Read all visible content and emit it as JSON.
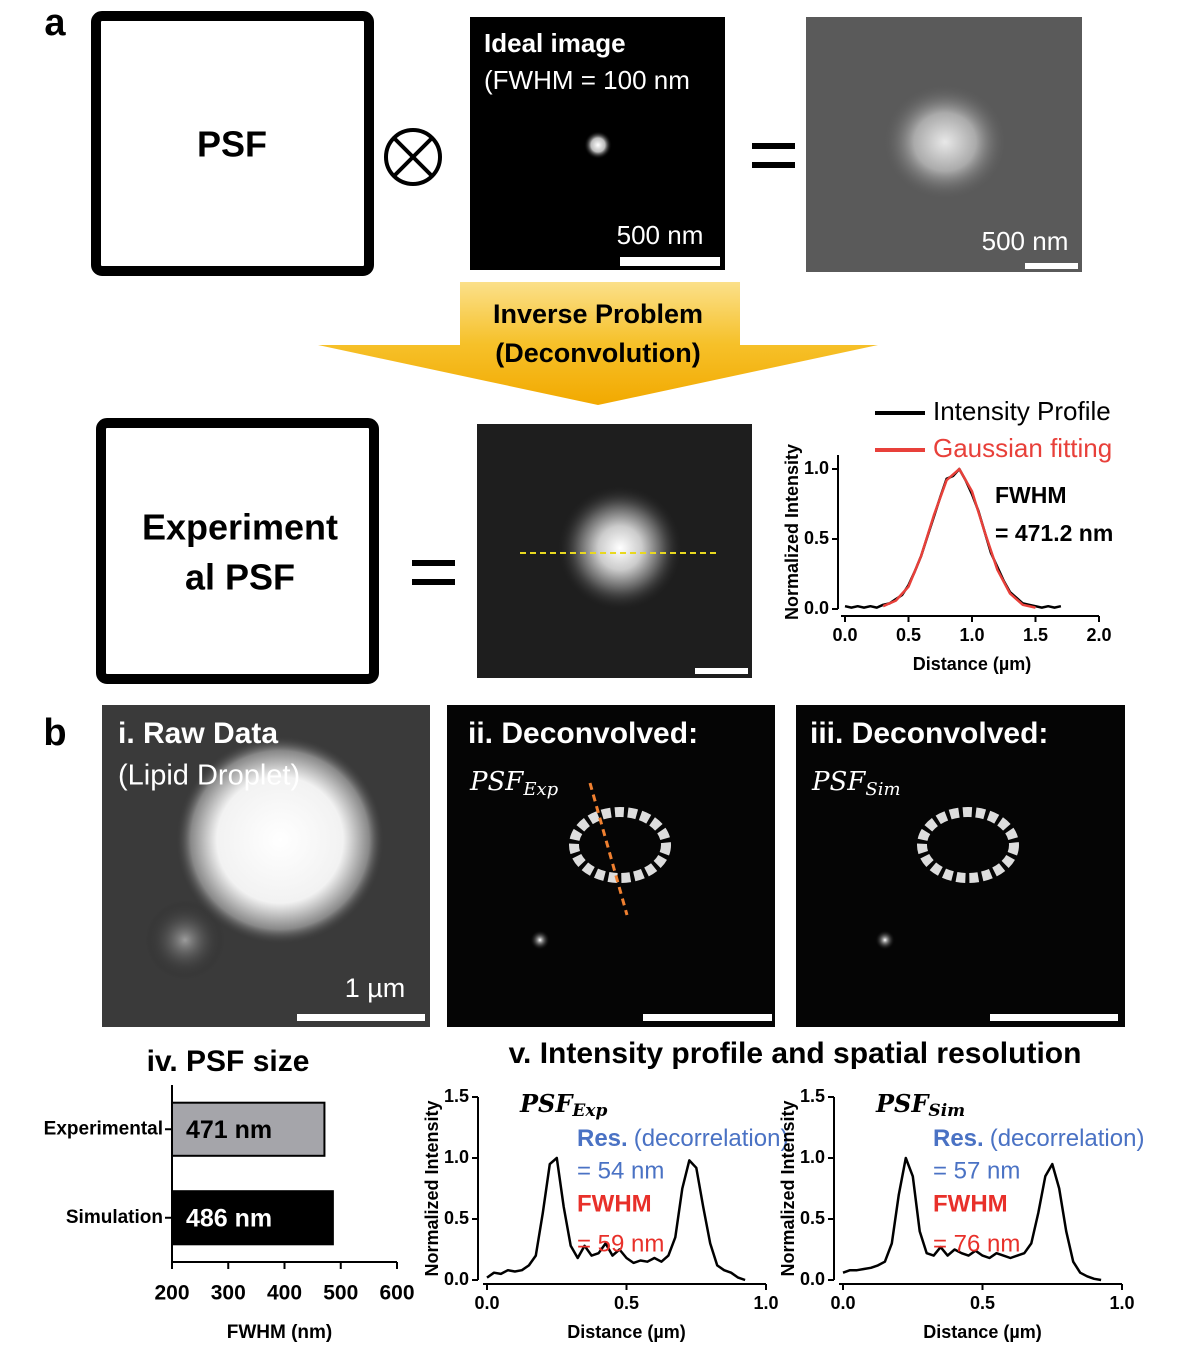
{
  "panel_a": {
    "label": "a",
    "psf_box": "PSF",
    "ideal_title": "Ideal image",
    "ideal_subtitle": "(FWHM = 100 nm",
    "ideal_scale": "500 nm",
    "blur_scale": "500 nm",
    "arrow_line1": "Inverse Problem",
    "arrow_line2": "(Deconvolution)",
    "exp_box_line1": "Experiment",
    "exp_box_line2": "al PSF"
  },
  "panel_b": {
    "label": "b",
    "raw_title": "i. Raw Data",
    "raw_subtitle": "(Lipid Droplet)",
    "raw_scale": "1 µm",
    "dec_exp_title": "ii. Deconvolved:",
    "dec_exp_psf": {
      "main": "PSF",
      "sub": "Exp"
    },
    "dec_sim_title": "iii. Deconvolved:",
    "dec_sim_psf": {
      "main": "PSF",
      "sub": "Sim"
    },
    "profile_title": "v. Intensity profile and spatial resolution"
  },
  "chart_data": [
    {
      "type": "line",
      "x_label": "Distance (µm)",
      "y_label": "Normalized Intensity",
      "xlim": [
        0,
        2
      ],
      "ylim": [
        0,
        1.1
      ],
      "xticks": [
        {
          "value": 0,
          "label": "0.0"
        },
        0.5,
        {
          "value": 1,
          "label": "1.0"
        },
        1.5,
        {
          "value": 2,
          "label": "2.0"
        }
      ],
      "yticks": [
        {
          "value": 0,
          "label": "0.0"
        },
        0.5,
        {
          "value": 1,
          "label": "1.0"
        }
      ],
      "series": [
        {
          "name": "Intensity Profile",
          "color": "#000000",
          "x": [
            0,
            0.05,
            0.1,
            0.15,
            0.2,
            0.25,
            0.3,
            0.35,
            0.4,
            0.45,
            0.5,
            0.55,
            0.6,
            0.65,
            0.7,
            0.75,
            0.8,
            0.85,
            0.9,
            0.95,
            1.0,
            1.05,
            1.1,
            1.15,
            1.2,
            1.25,
            1.3,
            1.35,
            1.4,
            1.45,
            1.5,
            1.55,
            1.6,
            1.65,
            1.7
          ],
          "values": [
            0.02,
            0.01,
            0.02,
            0.01,
            0.02,
            0.01,
            0.03,
            0.04,
            0.07,
            0.1,
            0.17,
            0.27,
            0.38,
            0.52,
            0.66,
            0.8,
            0.93,
            0.95,
            1.0,
            0.92,
            0.82,
            0.7,
            0.55,
            0.4,
            0.3,
            0.2,
            0.12,
            0.08,
            0.04,
            0.03,
            0.02,
            0.01,
            0.02,
            0.01,
            0.02
          ]
        },
        {
          "name": "Gaussian fitting",
          "color": "#e8403a",
          "x": [
            0.3,
            0.4,
            0.5,
            0.6,
            0.7,
            0.8,
            0.9,
            1.0,
            1.1,
            1.2,
            1.3,
            1.4,
            1.5
          ],
          "values": [
            0.02,
            0.06,
            0.16,
            0.38,
            0.67,
            0.92,
            1.0,
            0.84,
            0.55,
            0.28,
            0.11,
            0.03,
            0.01
          ]
        }
      ],
      "annotations": [
        "FWHM",
        "= 471.2 nm"
      ]
    },
    {
      "type": "barh",
      "title": "iv. PSF size",
      "categories": [
        "Experimental",
        "Simulation"
      ],
      "values": [
        471,
        486
      ],
      "value_labels": [
        "471 nm",
        "486 nm"
      ],
      "colors": [
        "#a5a5aa",
        "#000000"
      ],
      "x_label": "FWHM (nm)",
      "xlim": [
        200,
        600
      ],
      "xticks": [
        200,
        300,
        400,
        500,
        600
      ]
    },
    {
      "type": "line",
      "subtitle": {
        "main": "PSF",
        "sub": "Exp"
      },
      "x_label": "Distance (µm)",
      "y_label": "Normalized Intensity",
      "xlim": [
        0,
        1
      ],
      "ylim": [
        0,
        1.5
      ],
      "xticks": [
        {
          "value": 0,
          "label": "0.0"
        },
        0.5,
        {
          "value": 1,
          "label": "1.0"
        }
      ],
      "yticks": [
        {
          "value": 0,
          "label": "0.0"
        },
        0.5,
        {
          "value": 1,
          "label": "1.0"
        },
        1.5
      ],
      "series": [
        {
          "color": "#000000",
          "x": [
            0,
            0.025,
            0.05,
            0.075,
            0.1,
            0.125,
            0.15,
            0.175,
            0.2,
            0.225,
            0.25,
            0.275,
            0.3,
            0.325,
            0.35,
            0.375,
            0.4,
            0.425,
            0.45,
            0.475,
            0.5,
            0.525,
            0.55,
            0.575,
            0.6,
            0.625,
            0.65,
            0.675,
            0.7,
            0.725,
            0.75,
            0.775,
            0.8,
            0.825,
            0.85,
            0.875,
            0.9,
            0.925
          ],
          "values": [
            0.02,
            0.06,
            0.05,
            0.08,
            0.07,
            0.08,
            0.12,
            0.2,
            0.55,
            0.95,
            1.0,
            0.6,
            0.28,
            0.18,
            0.28,
            0.2,
            0.22,
            0.3,
            0.2,
            0.25,
            0.18,
            0.14,
            0.16,
            0.15,
            0.18,
            0.15,
            0.2,
            0.35,
            0.75,
            0.98,
            0.92,
            0.6,
            0.3,
            0.12,
            0.08,
            0.06,
            0.02,
            0.0
          ]
        }
      ],
      "annotations": {
        "res_label": "Res.",
        "res_method": "(decorrelation)",
        "res_value": "= 54 nm",
        "fwhm_label": "FWHM",
        "fwhm_value": "= 59 nm"
      }
    },
    {
      "type": "line",
      "subtitle": {
        "main": "PSF",
        "sub": "Sim"
      },
      "x_label": "Distance (µm)",
      "y_label": "Normalized Intensity",
      "xlim": [
        0,
        1
      ],
      "ylim": [
        0,
        1.5
      ],
      "xticks": [
        {
          "value": 0,
          "label": "0.0"
        },
        0.5,
        {
          "value": 1,
          "label": "1.0"
        }
      ],
      "yticks": [
        {
          "value": 0,
          "label": "0.0"
        },
        0.5,
        {
          "value": 1,
          "label": "1.0"
        },
        1.5
      ],
      "series": [
        {
          "color": "#000000",
          "x": [
            0,
            0.025,
            0.05,
            0.075,
            0.1,
            0.125,
            0.15,
            0.175,
            0.2,
            0.225,
            0.25,
            0.275,
            0.3,
            0.325,
            0.35,
            0.375,
            0.4,
            0.425,
            0.45,
            0.475,
            0.5,
            0.525,
            0.55,
            0.575,
            0.6,
            0.625,
            0.65,
            0.675,
            0.7,
            0.725,
            0.75,
            0.775,
            0.8,
            0.825,
            0.85,
            0.875,
            0.9,
            0.925
          ],
          "values": [
            0.06,
            0.08,
            0.08,
            0.09,
            0.1,
            0.12,
            0.15,
            0.3,
            0.7,
            1.0,
            0.85,
            0.4,
            0.22,
            0.2,
            0.27,
            0.2,
            0.25,
            0.22,
            0.2,
            0.24,
            0.2,
            0.18,
            0.22,
            0.2,
            0.18,
            0.2,
            0.22,
            0.3,
            0.55,
            0.85,
            0.95,
            0.75,
            0.4,
            0.15,
            0.06,
            0.03,
            0.01,
            0.0
          ]
        }
      ],
      "annotations": {
        "res_label": "Res.",
        "res_method": "(decorrelation)",
        "res_value": "= 57 nm",
        "fwhm_label": "FWHM",
        "fwhm_value": "= 76 nm"
      }
    }
  ]
}
